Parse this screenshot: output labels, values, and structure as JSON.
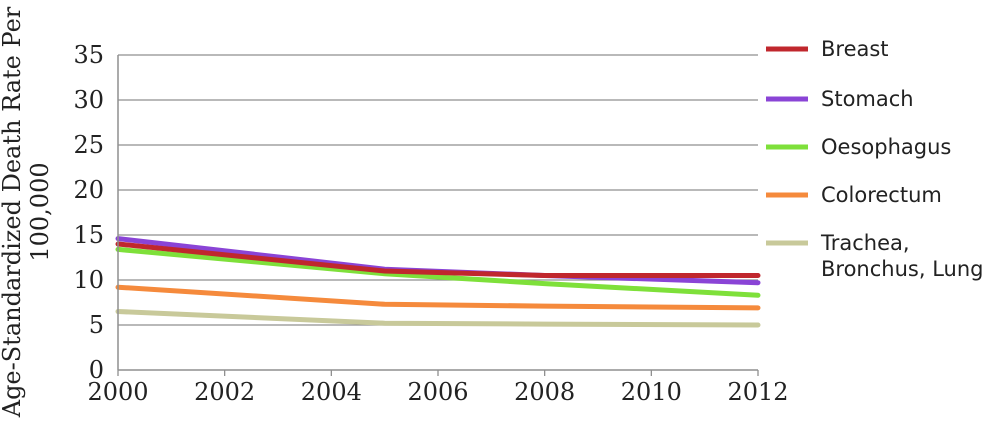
{
  "chart_data": {
    "type": "line",
    "title": "",
    "ylabel_lines": [
      "Age-Standardized Death Rate Per",
      "100,000"
    ],
    "xlabel": "",
    "x": [
      2000,
      2005,
      2008,
      2012
    ],
    "xticks": [
      2000,
      2002,
      2004,
      2006,
      2008,
      2010,
      2012
    ],
    "xlim": [
      2000,
      2012
    ],
    "yticks": [
      0,
      5,
      10,
      15,
      20,
      25,
      30,
      35
    ],
    "ylim": [
      0,
      35
    ],
    "grid": true,
    "legend_position": "right",
    "series": [
      {
        "name": "Breast",
        "color": "#c0272d",
        "values": [
          14.0,
          11.0,
          10.5,
          10.5
        ]
      },
      {
        "name": "Stomach",
        "color": "#8a44d6",
        "values": [
          14.6,
          11.2,
          10.5,
          9.7
        ]
      },
      {
        "name": "Oesophagus",
        "color": "#7ee03a",
        "values": [
          13.4,
          10.7,
          9.6,
          8.3
        ]
      },
      {
        "name": "Colorectum",
        "color": "#f58a3c",
        "values": [
          9.2,
          7.3,
          7.1,
          6.9
        ]
      },
      {
        "name": "Trachea, Bronchus, Lung",
        "legend_lines": [
          "Trachea,",
          "Bronchus, Lung"
        ],
        "color": "#c8c99a",
        "values": [
          6.5,
          5.2,
          5.1,
          5.0
        ]
      }
    ]
  }
}
